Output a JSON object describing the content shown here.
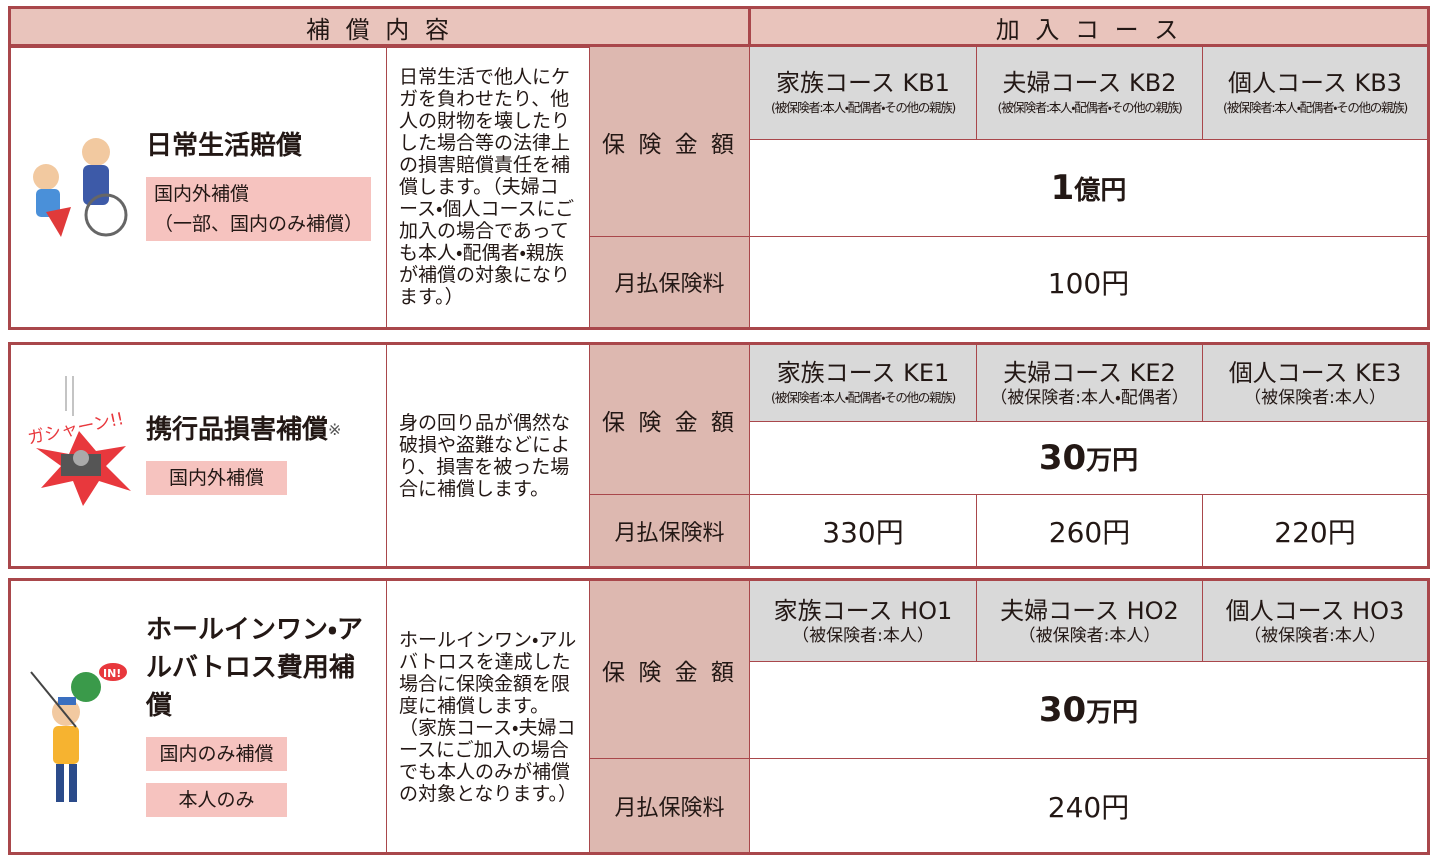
{
  "header": {
    "coverage": "補 償 内 容",
    "course": "加 入 コ ー ス"
  },
  "sections": [
    {
      "title": "日常生活賠償",
      "tags": [
        [
          "国内外補償",
          "（一部、国内のみ補償）"
        ]
      ],
      "description": "日常生活で他人にケガを負わせたり、他人の財物を壊したりした場合等の法律上の損害賠償責任を補償します。（夫婦コース・個人コースにご加入の場合であっても本人・配偶者・親族が補償の対象になります。）",
      "amount_label": "保 険 金 額",
      "premium_label": "月払保険料",
      "courses": [
        {
          "name": "家族コース KB1",
          "insured": "(被保険者:本人・配偶者・その他の親族)"
        },
        {
          "name": "夫婦コース KB2",
          "insured": "(被保険者:本人・配偶者・その他の親族)"
        },
        {
          "name": "個人コース KB3",
          "insured": "(被保険者:本人・配偶者・その他の親族)"
        }
      ],
      "amount": {
        "number": "1",
        "unit": "億円"
      },
      "premiums": [
        "100円"
      ]
    },
    {
      "title": "携行品損害補償",
      "title_mark": "※",
      "illustration_text": "ガシャーン!!",
      "tags": [
        [
          "国内外補償"
        ]
      ],
      "description": "身の回り品が偶然な破損や盗難などにより、損害を被った場合に補償します。",
      "amount_label": "保 険 金 額",
      "premium_label": "月払保険料",
      "courses": [
        {
          "name": "家族コース KE1",
          "insured": "(被保険者:本人・配偶者・その他の親族)"
        },
        {
          "name": "夫婦コース KE2",
          "insured": "（被保険者:本人・配偶者）"
        },
        {
          "name": "個人コース KE3",
          "insured": "（被保険者:本人）"
        }
      ],
      "amount": {
        "number": "30",
        "unit": "万円"
      },
      "premiums": [
        "330円",
        "260円",
        "220円"
      ]
    },
    {
      "title": "ホールインワン・アルバトロス費用補償",
      "illustration_text": "IN!",
      "tags": [
        [
          "国内のみ補償"
        ],
        [
          "本人のみ"
        ]
      ],
      "description": "ホールインワン・アルバトロスを達成した場合に保険金額を限度に補償します。（家族コース・夫婦コースにご加入の場合でも本人のみが補償の対象となります。）",
      "amount_label": "保 険 金 額",
      "premium_label": "月払保険料",
      "courses": [
        {
          "name": "家族コース HO1",
          "insured": "（被保険者:本人）"
        },
        {
          "name": "夫婦コース HO2",
          "insured": "（被保険者:本人）"
        },
        {
          "name": "個人コース HO3",
          "insured": "（被保険者:本人）"
        }
      ],
      "amount": {
        "number": "30",
        "unit": "万円"
      },
      "premiums": [
        "240円"
      ]
    }
  ]
}
